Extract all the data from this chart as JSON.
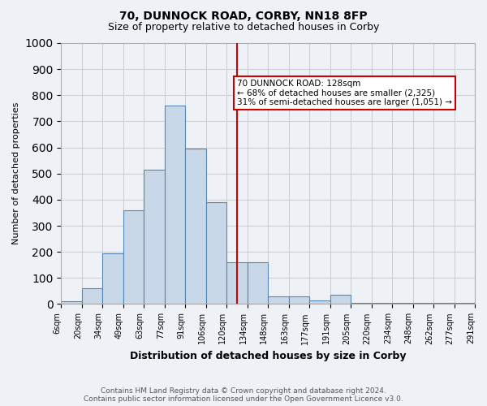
{
  "title": "70, DUNNOCK ROAD, CORBY, NN18 8FP",
  "subtitle": "Size of property relative to detached houses in Corby",
  "xlabel": "Distribution of detached houses by size in Corby",
  "ylabel": "Number of detached properties",
  "footnote1": "Contains HM Land Registry data © Crown copyright and database right 2024.",
  "footnote2": "Contains public sector information licensed under the Open Government Licence v3.0.",
  "annotation_line1": "70 DUNNOCK ROAD: 128sqm",
  "annotation_line2": "← 68% of detached houses are smaller (2,325)",
  "annotation_line3": "31% of semi-detached houses are larger (1,051) →",
  "bar_labels": [
    "6sqm",
    "20sqm",
    "34sqm",
    "49sqm",
    "63sqm",
    "77sqm",
    "91sqm",
    "106sqm",
    "120sqm",
    "134sqm",
    "148sqm",
    "163sqm",
    "177sqm",
    "191sqm",
    "205sqm",
    "220sqm",
    "234sqm",
    "248sqm",
    "262sqm",
    "277sqm",
    "291sqm"
  ],
  "bar_heights": [
    10,
    60,
    195,
    360,
    515,
    760,
    595,
    390,
    160,
    160,
    30,
    30,
    15,
    35,
    5,
    5,
    5,
    5,
    5,
    5
  ],
  "bar_color": "#c8d8e8",
  "bar_edge_color": "#5585b5",
  "vline_bar_index": 8.5,
  "vline_color": "#cc0000",
  "annotation_box_color": "#cc0000",
  "background_color": "#eef2f7",
  "grid_color": "#cccccc",
  "ylim": [
    0,
    1000
  ],
  "yticks": [
    0,
    100,
    200,
    300,
    400,
    500,
    600,
    700,
    800,
    900,
    1000
  ],
  "title_fontsize": 10,
  "subtitle_fontsize": 9,
  "ylabel_fontsize": 8,
  "xlabel_fontsize": 9
}
